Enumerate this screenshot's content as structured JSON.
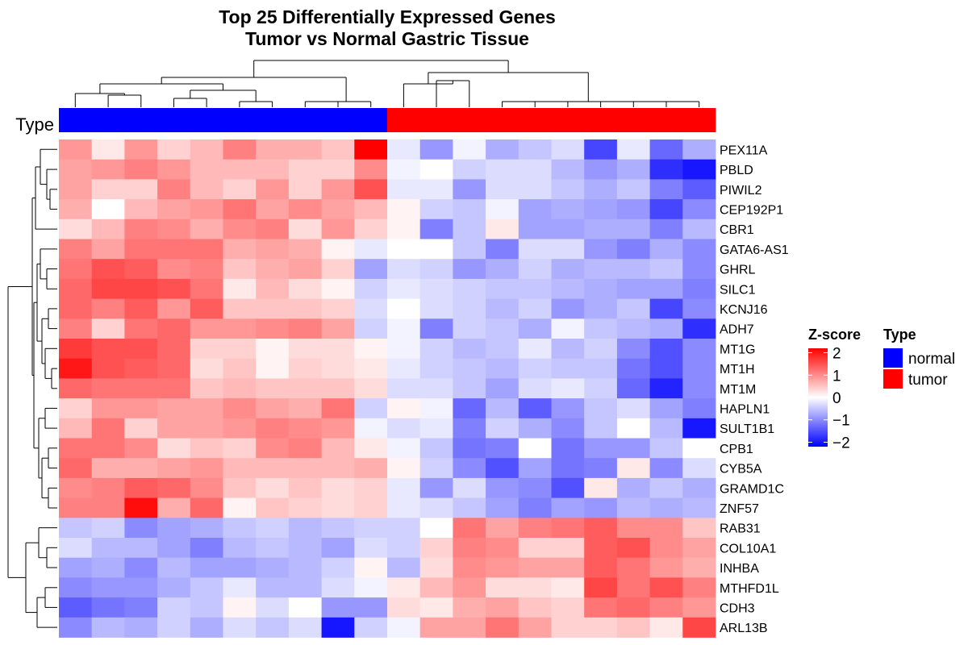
{
  "chart_data": {
    "type": "heatmap",
    "title": "Top 25 Differentially Expressed Genes",
    "subtitle": "Tumor vs Normal Gastric Tissue",
    "annotation_label": "Type",
    "column_types": [
      "normal",
      "normal",
      "normal",
      "normal",
      "normal",
      "normal",
      "normal",
      "normal",
      "normal",
      "normal",
      "tumor",
      "tumor",
      "tumor",
      "tumor",
      "tumor",
      "tumor",
      "tumor",
      "tumor",
      "tumor",
      "tumor"
    ],
    "genes": [
      "PEX11A",
      "PBLD",
      "PIWIL2",
      "CEP192P1",
      "CBR1",
      "GATA6-AS1",
      "GHRL",
      "SILC1",
      "KCNJ16",
      "ADH7",
      "MT1G",
      "MT1H",
      "MT1M",
      "HAPLN1",
      "SULT1B1",
      "CPB1",
      "CYB5A",
      "GRAMD1C",
      "ZNF57",
      "RAB31",
      "COL10A1",
      "INHBA",
      "MTHFD1L",
      "CDH3",
      "ARL13B"
    ],
    "values": [
      [
        0.9,
        0.2,
        0.9,
        0.4,
        0.6,
        1.1,
        0.7,
        0.7,
        0.5,
        2.2,
        -0.2,
        -0.9,
        -0.1,
        -0.7,
        -0.5,
        -0.3,
        -1.6,
        -0.2,
        -1.3,
        -0.7
      ],
      [
        0.8,
        0.9,
        1.1,
        0.9,
        0.6,
        0.6,
        0.6,
        0.4,
        0.4,
        1.0,
        -0.1,
        0.0,
        -0.4,
        -0.3,
        -0.3,
        -0.6,
        -0.9,
        -0.7,
        -1.8,
        -2.0
      ],
      [
        0.8,
        0.4,
        0.4,
        1.1,
        0.6,
        0.4,
        0.9,
        0.4,
        0.9,
        1.5,
        -0.2,
        -0.2,
        -0.9,
        -0.3,
        -0.3,
        -0.5,
        -0.7,
        -0.5,
        -1.1,
        -1.4
      ],
      [
        0.7,
        0.0,
        0.6,
        0.8,
        0.9,
        1.2,
        0.8,
        1.0,
        0.8,
        0.6,
        0.1,
        -0.4,
        -0.5,
        -0.1,
        -0.8,
        -0.7,
        -0.8,
        -0.9,
        -1.6,
        -1.0
      ],
      [
        0.3,
        0.6,
        1.1,
        1.0,
        0.7,
        1.0,
        1.1,
        0.3,
        0.9,
        0.4,
        0.1,
        -1.1,
        -0.5,
        0.2,
        -0.8,
        -0.8,
        -0.7,
        -0.7,
        -1.1,
        -0.6
      ],
      [
        1.1,
        0.8,
        1.2,
        1.2,
        1.2,
        0.7,
        0.8,
        0.7,
        0.1,
        -0.2,
        0.0,
        0.0,
        -0.5,
        -1.1,
        -0.3,
        -0.3,
        -0.9,
        -1.1,
        -0.7,
        -1.0
      ],
      [
        1.2,
        1.5,
        1.4,
        1.0,
        1.1,
        0.5,
        0.7,
        0.8,
        0.4,
        -0.8,
        -0.3,
        -0.4,
        -0.9,
        -0.7,
        -0.4,
        -0.7,
        -0.6,
        -0.6,
        -0.5,
        -1.0
      ],
      [
        1.3,
        1.6,
        1.6,
        1.5,
        1.2,
        0.2,
        0.6,
        0.3,
        0.1,
        -0.4,
        -0.2,
        -0.3,
        -0.4,
        -0.5,
        -0.5,
        -0.6,
        -0.7,
        -0.8,
        -0.8,
        -1.1
      ],
      [
        1.3,
        1.1,
        1.4,
        0.9,
        1.4,
        0.5,
        0.5,
        0.5,
        0.4,
        -0.3,
        0.0,
        -0.3,
        -0.4,
        -0.6,
        -0.4,
        -0.9,
        -0.7,
        -0.5,
        -1.6,
        -1.0
      ],
      [
        1.1,
        0.4,
        1.2,
        1.3,
        0.9,
        0.9,
        1.0,
        1.1,
        0.8,
        -0.4,
        -0.1,
        -1.1,
        -0.4,
        -0.5,
        -0.7,
        -0.1,
        -0.5,
        -0.6,
        -0.7,
        -1.8
      ],
      [
        1.7,
        1.5,
        1.5,
        1.3,
        0.4,
        0.4,
        0.1,
        0.3,
        0.3,
        0.1,
        -0.1,
        -0.4,
        -0.6,
        -0.5,
        -0.2,
        -0.6,
        -0.4,
        -1.0,
        -1.5,
        -1.0
      ],
      [
        2.0,
        1.5,
        1.4,
        1.3,
        0.3,
        0.5,
        0.1,
        0.4,
        0.3,
        0.2,
        -0.2,
        -0.4,
        -0.5,
        -0.6,
        -0.4,
        -0.5,
        -0.5,
        -1.2,
        -1.5,
        -1.0
      ],
      [
        1.3,
        1.2,
        1.2,
        1.2,
        0.5,
        0.6,
        0.5,
        0.5,
        0.5,
        0.3,
        -0.3,
        -0.3,
        -0.5,
        -0.8,
        -0.3,
        -0.2,
        -0.4,
        -1.3,
        -1.9,
        -1.0
      ],
      [
        0.4,
        0.9,
        0.9,
        0.8,
        0.8,
        1.0,
        0.8,
        0.7,
        1.2,
        -0.4,
        0.1,
        -0.1,
        -1.3,
        -0.6,
        -1.4,
        -0.9,
        -0.5,
        -0.3,
        -0.8,
        -1.1
      ],
      [
        0.6,
        1.2,
        0.4,
        0.8,
        0.8,
        0.9,
        1.1,
        1.0,
        0.9,
        -0.1,
        -0.3,
        -0.2,
        -1.1,
        -0.4,
        -0.7,
        -1.0,
        -0.5,
        0.0,
        -0.6,
        -2.0
      ],
      [
        1.2,
        1.2,
        1.0,
        0.3,
        0.5,
        0.4,
        1.0,
        1.1,
        0.6,
        0.2,
        -0.1,
        -0.5,
        -1.2,
        -1.1,
        0.0,
        -1.2,
        -0.9,
        -0.9,
        -0.5,
        0.0
      ],
      [
        1.3,
        0.7,
        0.7,
        0.8,
        0.9,
        0.6,
        0.6,
        0.6,
        0.6,
        0.7,
        0.1,
        -0.4,
        -1.0,
        -1.5,
        -0.8,
        -1.2,
        -1.1,
        0.2,
        -1.0,
        -0.3
      ],
      [
        1.0,
        1.1,
        1.4,
        1.3,
        1.0,
        0.5,
        0.3,
        0.5,
        0.3,
        0.4,
        -0.2,
        -0.9,
        -0.3,
        -0.9,
        -1.0,
        -1.5,
        0.2,
        -0.7,
        -0.5,
        -0.7
      ],
      [
        1.1,
        1.1,
        2.1,
        0.7,
        1.3,
        0.1,
        0.5,
        0.4,
        0.3,
        0.4,
        -0.2,
        -0.3,
        -0.5,
        -0.8,
        -1.1,
        -0.8,
        -0.9,
        -0.6,
        -0.7,
        -0.6
      ],
      [
        -0.5,
        -0.4,
        -1.0,
        -0.8,
        -0.7,
        -0.5,
        -0.4,
        -0.6,
        -0.5,
        -0.4,
        -0.4,
        0.0,
        1.2,
        0.8,
        1.1,
        1.2,
        1.4,
        1.0,
        1.0,
        0.5
      ],
      [
        -0.3,
        -0.6,
        -0.6,
        -0.8,
        -1.1,
        -0.6,
        -0.5,
        -0.6,
        -0.8,
        -0.3,
        -0.4,
        0.4,
        1.1,
        1.0,
        0.4,
        0.4,
        1.4,
        1.5,
        1.0,
        0.8
      ],
      [
        -0.8,
        -0.7,
        -1.0,
        -0.6,
        -0.8,
        -0.8,
        -0.7,
        -0.6,
        -0.4,
        0.1,
        -0.6,
        0.3,
        1.0,
        0.9,
        0.8,
        0.8,
        1.4,
        1.2,
        0.9,
        0.7
      ],
      [
        -1.0,
        -0.9,
        -0.9,
        -0.7,
        -0.5,
        -0.2,
        -0.6,
        -0.6,
        -0.3,
        -0.1,
        0.2,
        0.6,
        0.9,
        0.3,
        0.3,
        0.2,
        1.6,
        1.2,
        1.5,
        1.1
      ],
      [
        -1.4,
        -1.2,
        -1.1,
        -0.4,
        -0.5,
        0.1,
        -0.3,
        0.0,
        -0.9,
        -0.9,
        0.3,
        0.2,
        0.7,
        0.8,
        0.5,
        0.4,
        1.2,
        1.3,
        1.1,
        0.9
      ],
      [
        -1.0,
        -0.6,
        -0.7,
        -0.4,
        -0.7,
        -0.3,
        -0.5,
        -0.3,
        -2.0,
        -0.4,
        -0.1,
        0.8,
        0.8,
        1.2,
        0.8,
        0.4,
        0.4,
        0.5,
        0.2,
        1.6
      ]
    ],
    "color_scale": {
      "low": "#0000ff",
      "mid": "#ffffff",
      "high": "#ff0000",
      "min": -2.2,
      "max": 2.2
    },
    "legend_colorbar": {
      "title": "Z-score",
      "ticks": [
        2,
        1,
        0,
        -1,
        -2
      ]
    },
    "legend_type": {
      "title": "Type",
      "entries": [
        {
          "label": "normal",
          "color": "#0000ff"
        },
        {
          "label": "tumor",
          "color": "#ff0000"
        }
      ]
    },
    "legend_placement": "right",
    "column_dendrogram": true,
    "row_dendrogram": true
  }
}
